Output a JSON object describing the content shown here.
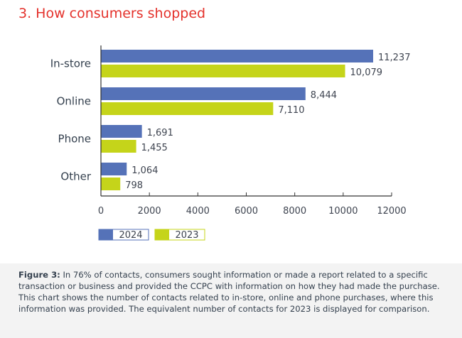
{
  "title": "3. How consumers shopped",
  "caption": {
    "label": "Figure 3:",
    "text": " In 76% of contacts, consumers sought information or made a report related to a specific transaction or business and provided the CCPC with information on how they had made the purchase. This chart shows the number of contacts related to in-store, online and phone purchases, where this information was provided. The equivalent number of contacts for 2023 is displayed for comparison."
  },
  "chart_data": {
    "type": "bar",
    "orientation": "horizontal",
    "categories": [
      "In-store",
      "Online",
      "Phone",
      "Other"
    ],
    "series": [
      {
        "name": "2024",
        "values": [
          11237,
          8444,
          1691,
          1064
        ],
        "labels": [
          "11,237",
          "8,444",
          "1,691",
          "1,064"
        ],
        "color": "#5572b8"
      },
      {
        "name": "2023",
        "values": [
          10079,
          7110,
          1455,
          798
        ],
        "labels": [
          "10,079",
          "7,110",
          "1,455",
          "798"
        ],
        "color": "#c5d41a"
      }
    ],
    "xlim": [
      0,
      12000
    ],
    "xticks": [
      "0",
      "2000",
      "4000",
      "6000",
      "8000",
      "10000",
      "12000"
    ],
    "grid": false,
    "legend": "bottom-left",
    "title": "",
    "xlabel": "",
    "ylabel": ""
  }
}
